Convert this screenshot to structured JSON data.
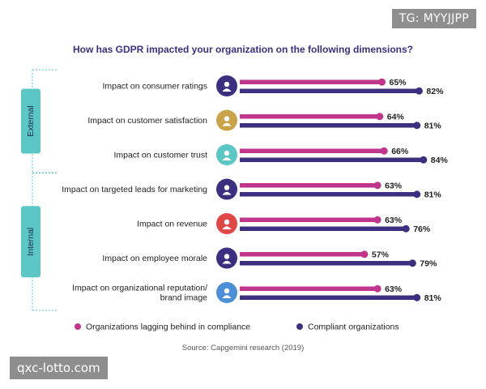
{
  "watermarks": {
    "top_right": "TG: MYYJJPP",
    "bottom_left": "qxc-lotto.com"
  },
  "chart_data": {
    "type": "bar",
    "orientation": "horizontal",
    "title": "How has GDPR impacted your organization on the following dimensions?",
    "categories": [
      [
        "Impact on consumer ratings"
      ],
      [
        "Impact on customer satisfaction"
      ],
      [
        "Impact on customer trust"
      ],
      [
        "Impact on targeted leads for marketing"
      ],
      [
        "Impact on revenue"
      ],
      [
        "Impact on employee morale"
      ],
      [
        "Impact on organizational reputation/",
        "brand image"
      ]
    ],
    "icons": [
      "ratings-icon",
      "satisfaction-icon",
      "trust-icon",
      "target-icon",
      "revenue-icon",
      "morale-icon",
      "reputation-icon"
    ],
    "series": [
      {
        "name": "Organizations lagging behind in compliance",
        "color": "#c0368c",
        "values": [
          65,
          64,
          66,
          63,
          63,
          57,
          63
        ]
      },
      {
        "name": "Compliant organizations",
        "color": "#3c2f80",
        "values": [
          82,
          81,
          84,
          81,
          76,
          79,
          81
        ]
      }
    ],
    "value_suffix": "%",
    "xlim": [
      0,
      100
    ],
    "groups": [
      {
        "label": "External",
        "range": [
          0,
          2
        ]
      },
      {
        "label": "Internal",
        "range": [
          3,
          6
        ]
      }
    ],
    "group_color": "#5cc6c4",
    "icon_colors": [
      "#3c2f80",
      "#c9a34a",
      "#5cc6c4",
      "#3c2f80",
      "#e04848",
      "#3c2f80",
      "#4d8fd6"
    ],
    "legend_position": "bottom",
    "source": "Source: Capgemini research (2019)"
  }
}
